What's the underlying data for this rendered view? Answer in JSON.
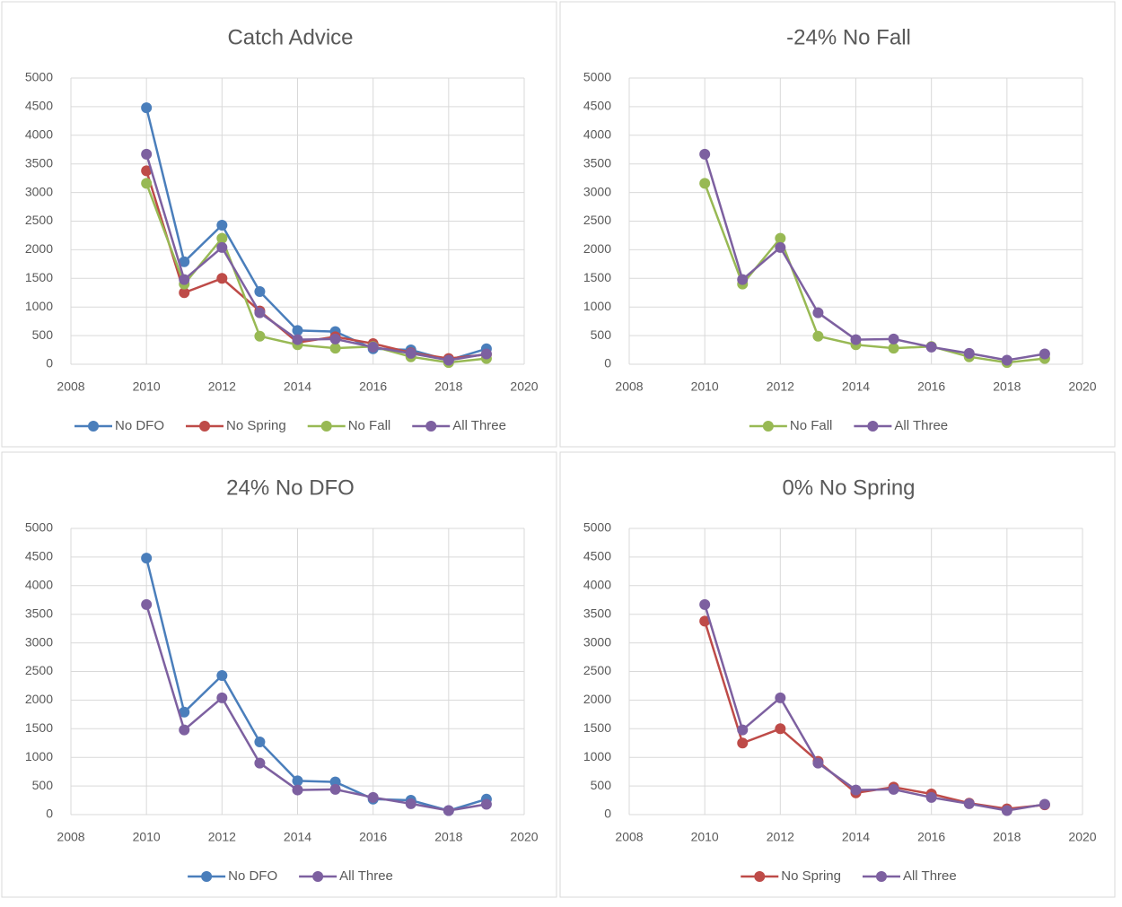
{
  "chart_data": [
    {
      "type": "line",
      "title": "Catch Advice",
      "x": [
        2010,
        2011,
        2012,
        2013,
        2014,
        2015,
        2016,
        2017,
        2018,
        2019
      ],
      "series": [
        {
          "name": "No DFO",
          "color": "#4a7ebb",
          "values": [
            4480,
            1790,
            2430,
            1270,
            590,
            570,
            270,
            250,
            70,
            270
          ]
        },
        {
          "name": "No Spring",
          "color": "#be4b48",
          "values": [
            3380,
            1250,
            1500,
            930,
            380,
            480,
            360,
            200,
            100,
            170
          ]
        },
        {
          "name": "No Fall",
          "color": "#98b954",
          "values": [
            3160,
            1400,
            2200,
            490,
            340,
            280,
            310,
            130,
            30,
            100
          ]
        },
        {
          "name": "All Three",
          "color": "#7d60a0",
          "values": [
            3670,
            1480,
            2040,
            900,
            430,
            440,
            300,
            190,
            70,
            180
          ]
        }
      ],
      "xlim": [
        2008,
        2020
      ],
      "xticks": [
        2008,
        2010,
        2012,
        2014,
        2016,
        2018,
        2020
      ],
      "ylim": [
        0,
        5000
      ],
      "yticks": [
        0,
        500,
        1000,
        1500,
        2000,
        2500,
        3000,
        3500,
        4000,
        4500,
        5000
      ],
      "grid": true,
      "legend": "bottom"
    },
    {
      "type": "line",
      "title": "-24% No Fall",
      "x": [
        2010,
        2011,
        2012,
        2013,
        2014,
        2015,
        2016,
        2017,
        2018,
        2019
      ],
      "series": [
        {
          "name": "No Fall",
          "color": "#98b954",
          "values": [
            3160,
            1400,
            2200,
            490,
            340,
            280,
            310,
            130,
            30,
            100
          ]
        },
        {
          "name": "All Three",
          "color": "#7d60a0",
          "values": [
            3670,
            1480,
            2040,
            900,
            430,
            440,
            300,
            190,
            70,
            180
          ]
        }
      ],
      "xlim": [
        2008,
        2020
      ],
      "xticks": [
        2008,
        2010,
        2012,
        2014,
        2016,
        2018,
        2020
      ],
      "ylim": [
        0,
        5000
      ],
      "yticks": [
        0,
        500,
        1000,
        1500,
        2000,
        2500,
        3000,
        3500,
        4000,
        4500,
        5000
      ],
      "grid": true,
      "legend": "bottom"
    },
    {
      "type": "line",
      "title": "24% No DFO",
      "x": [
        2010,
        2011,
        2012,
        2013,
        2014,
        2015,
        2016,
        2017,
        2018,
        2019
      ],
      "series": [
        {
          "name": "No DFO",
          "color": "#4a7ebb",
          "values": [
            4480,
            1790,
            2430,
            1270,
            590,
            570,
            270,
            250,
            70,
            270
          ]
        },
        {
          "name": "All Three",
          "color": "#7d60a0",
          "values": [
            3670,
            1480,
            2040,
            900,
            430,
            440,
            300,
            190,
            70,
            180
          ]
        }
      ],
      "xlim": [
        2008,
        2020
      ],
      "xticks": [
        2008,
        2010,
        2012,
        2014,
        2016,
        2018,
        2020
      ],
      "ylim": [
        0,
        5000
      ],
      "yticks": [
        0,
        500,
        1000,
        1500,
        2000,
        2500,
        3000,
        3500,
        4000,
        4500,
        5000
      ],
      "grid": true,
      "legend": "bottom"
    },
    {
      "type": "line",
      "title": "0% No Spring",
      "x": [
        2010,
        2011,
        2012,
        2013,
        2014,
        2015,
        2016,
        2017,
        2018,
        2019
      ],
      "series": [
        {
          "name": "No Spring",
          "color": "#be4b48",
          "values": [
            3380,
            1250,
            1500,
            930,
            380,
            480,
            360,
            200,
            100,
            170
          ]
        },
        {
          "name": "All Three",
          "color": "#7d60a0",
          "values": [
            3670,
            1480,
            2040,
            900,
            430,
            440,
            300,
            190,
            70,
            180
          ]
        }
      ],
      "xlim": [
        2008,
        2020
      ],
      "xticks": [
        2008,
        2010,
        2012,
        2014,
        2016,
        2018,
        2020
      ],
      "ylim": [
        0,
        5000
      ],
      "yticks": [
        0,
        500,
        1000,
        1500,
        2000,
        2500,
        3000,
        3500,
        4000,
        4500,
        5000
      ],
      "grid": true,
      "legend": "bottom"
    }
  ]
}
